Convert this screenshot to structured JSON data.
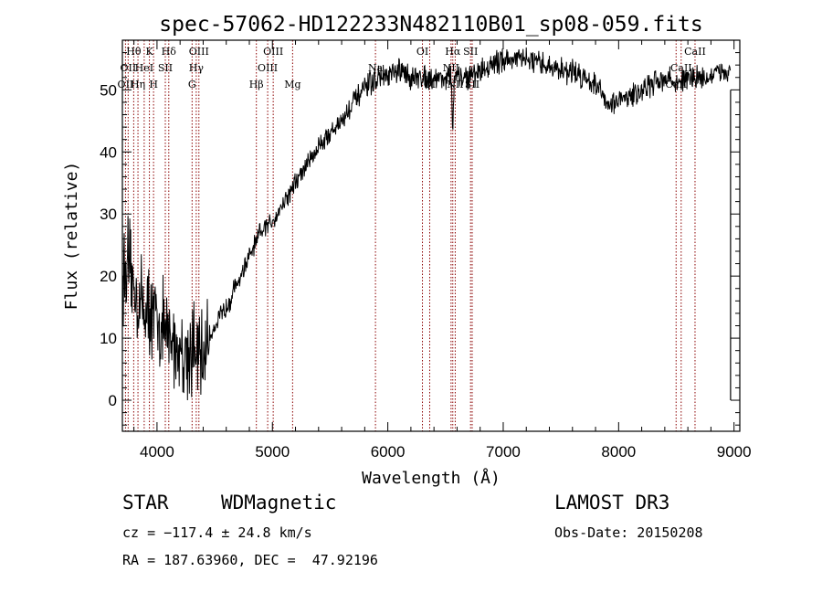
{
  "chart_data": {
    "type": "line",
    "title": "spec-57062-HD122233N482110B01_sp08-059.fits",
    "xlabel": "Wavelength (Å)",
    "ylabel": "Flux (relative)",
    "xlim": [
      3700,
      9050
    ],
    "ylim": [
      -5,
      58
    ],
    "xticks": [
      4000,
      5000,
      6000,
      7000,
      8000,
      9000
    ],
    "yticks": [
      0,
      10,
      20,
      30,
      40,
      50
    ],
    "grid": false,
    "line_color": "#000000",
    "marker_color": "#8b0000",
    "anchors": [
      [
        3700,
        20
      ],
      [
        3750,
        22
      ],
      [
        3800,
        18
      ],
      [
        3850,
        16
      ],
      [
        3900,
        15
      ],
      [
        3950,
        14
      ],
      [
        4000,
        13
      ],
      [
        4050,
        12
      ],
      [
        4100,
        10
      ],
      [
        4150,
        9
      ],
      [
        4200,
        8
      ],
      [
        4250,
        8
      ],
      [
        4300,
        8
      ],
      [
        4350,
        7
      ],
      [
        4400,
        7
      ],
      [
        4450,
        10
      ],
      [
        4500,
        12
      ],
      [
        4600,
        15
      ],
      [
        4700,
        19
      ],
      [
        4800,
        23
      ],
      [
        4900,
        27
      ],
      [
        5000,
        29
      ],
      [
        5100,
        32
      ],
      [
        5200,
        35
      ],
      [
        5300,
        38
      ],
      [
        5400,
        41
      ],
      [
        5500,
        43
      ],
      [
        5600,
        45
      ],
      [
        5700,
        48
      ],
      [
        5800,
        50
      ],
      [
        5900,
        52
      ],
      [
        6000,
        52
      ],
      [
        6100,
        53
      ],
      [
        6200,
        52
      ],
      [
        6300,
        52
      ],
      [
        6400,
        52
      ],
      [
        6500,
        52
      ],
      [
        6600,
        52
      ],
      [
        6700,
        52
      ],
      [
        6800,
        53
      ],
      [
        6900,
        54
      ],
      [
        7000,
        55
      ],
      [
        7100,
        55
      ],
      [
        7200,
        55
      ],
      [
        7300,
        54
      ],
      [
        7400,
        54
      ],
      [
        7500,
        53
      ],
      [
        7600,
        53
      ],
      [
        7700,
        52
      ],
      [
        7800,
        51
      ],
      [
        7900,
        48
      ],
      [
        8000,
        48
      ],
      [
        8100,
        49
      ],
      [
        8200,
        50
      ],
      [
        8300,
        51
      ],
      [
        8400,
        52
      ],
      [
        8500,
        51
      ],
      [
        8600,
        52
      ],
      [
        8700,
        52
      ],
      [
        8800,
        52
      ],
      [
        8900,
        53
      ],
      [
        8970,
        53
      ]
    ],
    "noise_regions": [
      {
        "from": 3700,
        "to": 4450,
        "amp": 9
      },
      {
        "from": 4450,
        "to": 5800,
        "amp": 2.2
      },
      {
        "from": 5800,
        "to": 9000,
        "amp": 2.4
      }
    ],
    "absorption_dips": [
      {
        "wavelength": 6563,
        "depth": 8
      }
    ],
    "lines": [
      {
        "wavelength": 3727,
        "label": "OII",
        "row": 2
      },
      {
        "wavelength": 3750,
        "label": "OII",
        "row": 1
      },
      {
        "wavelength": 3798,
        "label": "Hθ",
        "row": 0
      },
      {
        "wavelength": 3835,
        "label": "Hη",
        "row": 2
      },
      {
        "wavelength": 3889,
        "label": "HeI",
        "row": 1
      },
      {
        "wavelength": 3934,
        "label": "K",
        "row": 0
      },
      {
        "wavelength": 3970,
        "label": "H",
        "row": 2
      },
      {
        "wavelength": 4072,
        "label": "SII",
        "row": 1
      },
      {
        "wavelength": 4102,
        "label": "Hδ",
        "row": 0
      },
      {
        "wavelength": 4304,
        "label": "G",
        "row": 2
      },
      {
        "wavelength": 4340,
        "label": "Hγ",
        "row": 1
      },
      {
        "wavelength": 4363,
        "label": "OIII",
        "row": 0
      },
      {
        "wavelength": 4861,
        "label": "Hβ",
        "row": 2
      },
      {
        "wavelength": 4959,
        "label": "OIII",
        "row": 1
      },
      {
        "wavelength": 5007,
        "label": "OIII",
        "row": 0
      },
      {
        "wavelength": 5175,
        "label": "Mg",
        "row": 2
      },
      {
        "wavelength": 5893,
        "label": "Na",
        "row": 1
      },
      {
        "wavelength": 6300,
        "label": "OI",
        "row": 0
      },
      {
        "wavelength": 6363,
        "label": "OI",
        "row": 2
      },
      {
        "wavelength": 6548,
        "label": "NII",
        "row": 1
      },
      {
        "wavelength": 6563,
        "label": "Hα",
        "row": 0
      },
      {
        "wavelength": 6584,
        "label": "NII",
        "row": 2
      },
      {
        "wavelength": 6717,
        "label": "SII",
        "row": 0
      },
      {
        "wavelength": 6731,
        "label": "SII",
        "row": 2
      },
      {
        "wavelength": 8498,
        "label": "CaII",
        "row": 2
      },
      {
        "wavelength": 8542,
        "label": "CaII",
        "row": 1
      },
      {
        "wavelength": 8662,
        "label": "CaII",
        "row": 0
      }
    ]
  },
  "info": {
    "class_label": "STAR",
    "subclass": "WDMagnetic",
    "survey": "LAMOST DR3",
    "cz": "cz = −117.4 ± 24.8 km/s",
    "obs_date": "Obs-Date: 20150208",
    "coords": "RA = 187.63960, DEC =  47.92196"
  }
}
